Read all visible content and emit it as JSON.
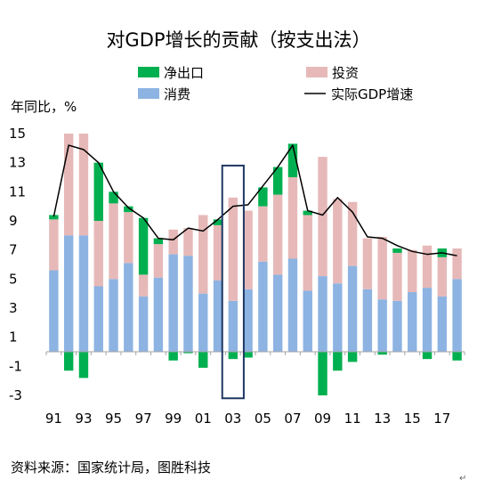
{
  "chart_data": {
    "type": "bar",
    "stacked": true,
    "title": "对GDP增长的贡献（按支出法）",
    "ylabel": "年同比，%",
    "ylim": [
      -3,
      15
    ],
    "yticks": [
      15,
      13,
      11,
      9,
      7,
      5,
      3,
      1,
      -1,
      -3
    ],
    "years": [
      1991,
      1992,
      1993,
      1994,
      1995,
      1996,
      1997,
      1998,
      1999,
      2000,
      2001,
      2002,
      2003,
      2004,
      2005,
      2006,
      2007,
      2008,
      2009,
      2010,
      2011,
      2012,
      2013,
      2014,
      2015,
      2016,
      2017,
      2018
    ],
    "xtick_labels": [
      "91",
      "93",
      "95",
      "97",
      "99",
      "01",
      "03",
      "05",
      "07",
      "09",
      "11",
      "13",
      "15",
      "17"
    ],
    "series": [
      {
        "name": "消费",
        "color": "#8db3e2",
        "values": [
          5.6,
          8.0,
          8.0,
          4.5,
          5.0,
          6.1,
          3.8,
          5.1,
          6.7,
          6.6,
          4.0,
          4.9,
          3.5,
          4.3,
          6.2,
          5.3,
          6.4,
          4.2,
          5.2,
          4.7,
          5.9,
          4.3,
          3.6,
          3.5,
          4.1,
          4.4,
          3.8,
          5.0
        ]
      },
      {
        "name": "投资",
        "color": "#e6b9b8",
        "values": [
          3.5,
          7.0,
          7.0,
          4.5,
          5.2,
          3.5,
          1.5,
          2.3,
          1.7,
          1.9,
          5.4,
          3.8,
          7.1,
          5.4,
          3.8,
          5.5,
          5.6,
          5.2,
          8.2,
          5.8,
          4.4,
          3.5,
          4.3,
          3.3,
          2.9,
          2.9,
          2.7,
          2.1
        ]
      },
      {
        "name": "净出口",
        "color": "#00b050",
        "values": [
          0.3,
          -1.3,
          -1.8,
          4.0,
          0.8,
          0.4,
          3.9,
          0.4,
          -0.6,
          -0.1,
          -1.1,
          0.4,
          -0.5,
          -0.4,
          1.3,
          1.9,
          2.3,
          0.3,
          -3.0,
          -1.3,
          -0.7,
          0.0,
          -0.2,
          0.3,
          0.0,
          -0.5,
          0.6,
          -0.6
        ]
      }
    ],
    "line": {
      "name": "实际GDP增速",
      "color": "#000000",
      "values": [
        9.3,
        14.2,
        13.9,
        13.0,
        11.0,
        9.9,
        9.2,
        7.8,
        7.7,
        8.5,
        8.3,
        9.1,
        10.0,
        10.1,
        11.4,
        12.7,
        14.2,
        9.7,
        9.4,
        10.6,
        9.6,
        7.9,
        7.8,
        7.3,
        6.9,
        6.7,
        6.8,
        6.6
      ]
    },
    "highlight_year": 2003,
    "legend_placement": "top",
    "grid": false
  },
  "source_text": "资料来源：国家统计局，图胜科技",
  "corner_mark": "↵"
}
